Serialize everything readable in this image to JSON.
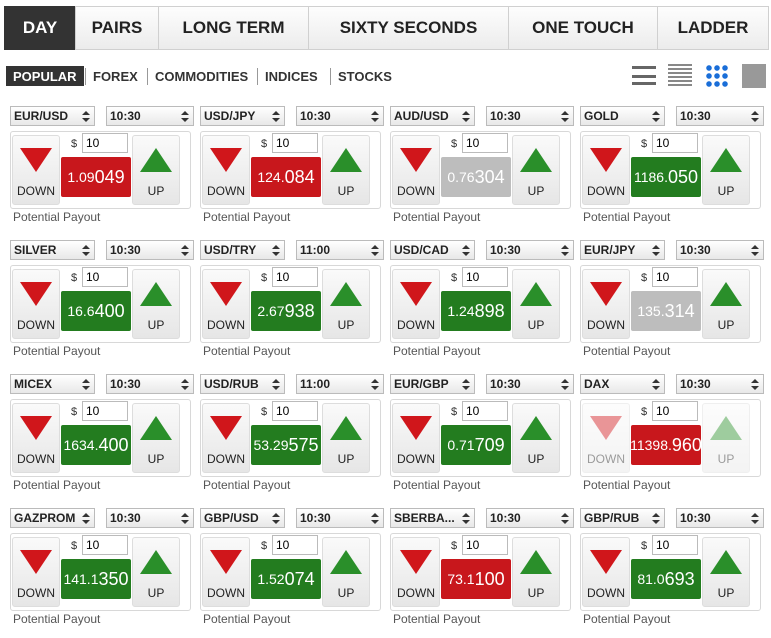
{
  "tabs": [
    "DAY",
    "PAIRS",
    "LONG TERM",
    "SIXTY SECONDS",
    "ONE TOUCH",
    "LADDER"
  ],
  "active_tab": 0,
  "filters": [
    "POPULAR",
    "FOREX",
    "COMMODITIES",
    "INDICES",
    "STOCKS"
  ],
  "active_filter": 0,
  "cards": [
    {
      "asset": "EUR/USD",
      "time": "10:30",
      "currency": "$",
      "amount": "10",
      "down": "DOWN",
      "price_small": "1.09",
      "price_big": "049",
      "price_color": "red",
      "up": "UP",
      "payout": "Potential Payout",
      "disabled": false
    },
    {
      "asset": "USD/JPY",
      "time": "10:30",
      "currency": "$",
      "amount": "10",
      "down": "DOWN",
      "price_small": "124.",
      "price_big": "084",
      "price_color": "red",
      "up": "UP",
      "payout": "Potential Payout",
      "disabled": false
    },
    {
      "asset": "AUD/USD",
      "time": "10:30",
      "currency": "$",
      "amount": "10",
      "down": "DOWN",
      "price_small": "0.76",
      "price_big": "304",
      "price_color": "gray",
      "up": "UP",
      "payout": "Potential Payout",
      "disabled": false
    },
    {
      "asset": "GOLD",
      "time": "10:30",
      "currency": "$",
      "amount": "10",
      "down": "DOWN",
      "price_small": "1186.",
      "price_big": "050",
      "price_color": "green",
      "up": "UP",
      "payout": "Potential Payout",
      "disabled": false
    },
    {
      "asset": "SILVER",
      "time": "10:30",
      "currency": "$",
      "amount": "10",
      "down": "DOWN",
      "price_small": "16.6",
      "price_big": "400",
      "price_color": "green",
      "up": "UP",
      "payout": "Potential Payout",
      "disabled": false
    },
    {
      "asset": "USD/TRY",
      "time": "11:00",
      "currency": "$",
      "amount": "10",
      "down": "DOWN",
      "price_small": "2.67",
      "price_big": "938",
      "price_color": "green",
      "up": "UP",
      "payout": "Potential Payout",
      "disabled": false
    },
    {
      "asset": "USD/CAD",
      "time": "10:30",
      "currency": "$",
      "amount": "10",
      "down": "DOWN",
      "price_small": "1.24",
      "price_big": "898",
      "price_color": "green",
      "up": "UP",
      "payout": "Potential Payout",
      "disabled": false
    },
    {
      "asset": "EUR/JPY",
      "time": "10:30",
      "currency": "$",
      "amount": "10",
      "down": "DOWN",
      "price_small": "135.",
      "price_big": "314",
      "price_color": "gray",
      "up": "UP",
      "payout": "Potential Payout",
      "disabled": false
    },
    {
      "asset": "MICEX",
      "time": "10:30",
      "currency": "$",
      "amount": "10",
      "down": "DOWN",
      "price_small": "1634.",
      "price_big": "400",
      "price_color": "green",
      "up": "UP",
      "payout": "Potential Payout",
      "disabled": false
    },
    {
      "asset": "USD/RUB",
      "time": "11:00",
      "currency": "$",
      "amount": "10",
      "down": "DOWN",
      "price_small": "53.29",
      "price_big": "575",
      "price_color": "green",
      "up": "UP",
      "payout": "Potential Payout",
      "disabled": false
    },
    {
      "asset": "EUR/GBP",
      "time": "10:30",
      "currency": "$",
      "amount": "10",
      "down": "DOWN",
      "price_small": "0.71",
      "price_big": "709",
      "price_color": "green",
      "up": "UP",
      "payout": "Potential Payout",
      "disabled": false
    },
    {
      "asset": "DAX",
      "time": "10:30",
      "currency": "$",
      "amount": "10",
      "down": "DOWN",
      "price_small": "11398.",
      "price_big": "960",
      "price_color": "red",
      "up": "UP",
      "payout": "Potential Payout",
      "disabled": true
    },
    {
      "asset": "GAZPROM",
      "time": "10:30",
      "currency": "$",
      "amount": "10",
      "down": "DOWN",
      "price_small": "141.1",
      "price_big": "350",
      "price_color": "green",
      "up": "UP",
      "payout": "Potential Payout",
      "disabled": false
    },
    {
      "asset": "GBP/USD",
      "time": "10:30",
      "currency": "$",
      "amount": "10",
      "down": "DOWN",
      "price_small": "1.52",
      "price_big": "074",
      "price_color": "green",
      "up": "UP",
      "payout": "Potential Payout",
      "disabled": false
    },
    {
      "asset": "SBERBA...",
      "time": "10:30",
      "currency": "$",
      "amount": "10",
      "down": "DOWN",
      "price_small": "73.1",
      "price_big": "100",
      "price_color": "red",
      "up": "UP",
      "payout": "Potential Payout",
      "disabled": false
    },
    {
      "asset": "GBP/RUB",
      "time": "10:30",
      "currency": "$",
      "amount": "10",
      "down": "DOWN",
      "price_small": "81.0",
      "price_big": "693",
      "price_color": "green",
      "up": "UP",
      "payout": "Potential Payout",
      "disabled": false
    }
  ]
}
